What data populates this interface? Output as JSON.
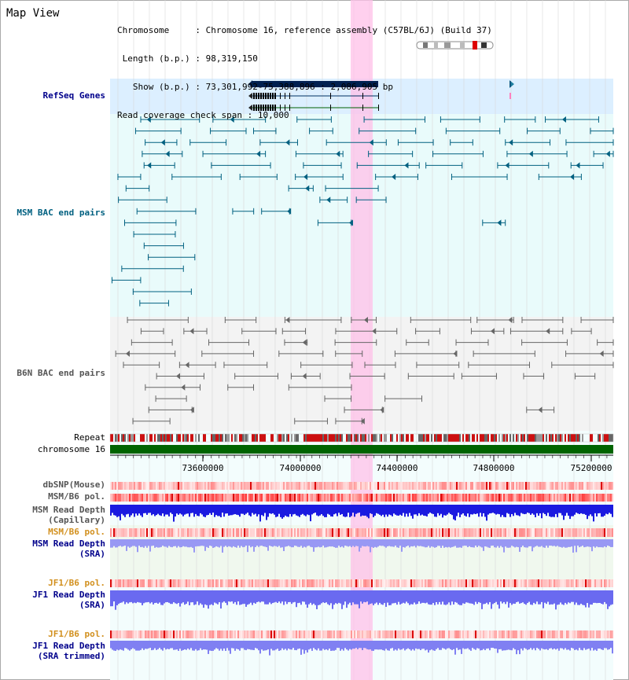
{
  "title": "Map View",
  "header": {
    "chromosome_key": "Chromosome",
    "chromosome_val": "Chromosome 16, reference assembly (C57BL/6J) (Build 37)",
    "length_key": "Length (b.p.)",
    "length_val": "98,319,150",
    "show_key": "Show (b.p.)",
    "show_val": "73,301,992-75,388,896 : 2,086,905 bp",
    "coverage_key": "Read coverage check span",
    "coverage_val": "10,000"
  },
  "tracks": {
    "refseq": "RefSeq Genes",
    "msm_bac": "MSM BAC end pairs",
    "b6n_bac": "B6N BAC end pairs",
    "repeat": "Repeat",
    "chromosome": "chromosome 16",
    "dbsnp": "dbSNP(Mouse)",
    "msm_b6_pol": "MSM/B6 pol.",
    "msm_depth_cap_1": "MSM Read Depth",
    "msm_depth_cap_2": "(Capillary)",
    "msm_b6_pol_sra": "MSM/B6 pol.",
    "msm_depth_sra_1": "MSM Read Depth",
    "msm_depth_sra_2": "(SRA)",
    "jf1_pol": "JF1/B6 pol.",
    "jf1_depth_1": "JF1 Read Depth",
    "jf1_depth_2": "(SRA)",
    "jf1_pol_trim": "JF1/B6 pol.",
    "jf1_trim_1": "JF1 Read Depth",
    "jf1_trim_2": "(SRA trimmed)"
  },
  "axis": {
    "ticks": [
      "73600000",
      "74000000",
      "74400000",
      "74800000",
      "75200000"
    ]
  },
  "colors": {
    "navy": "#00008b",
    "teal": "#006080",
    "orange": "#d2901e",
    "highlight": "#ffc0e8",
    "chrom_green": "#006400"
  }
}
